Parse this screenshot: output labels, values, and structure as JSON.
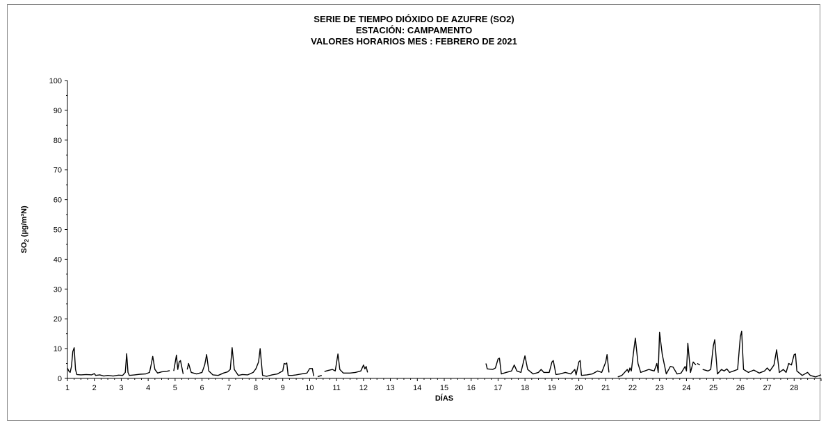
{
  "chart_data": {
    "type": "line",
    "title": "SERIE DE TIEMPO DIÓXIDO DE AZUFRE (SO2)",
    "subtitle": "ESTACIÓN: CAMPAMENTO",
    "subtitle2": "VALORES HORARIOS MES : FEBRERO DE 2021",
    "xlabel": "DÍAS",
    "ylabel_main": "SO",
    "ylabel_sub": "2",
    "ylabel_rest": " (µg/m³N)",
    "ylim": [
      0,
      100
    ],
    "xlim": [
      1,
      29
    ],
    "yticks": [
      0,
      10,
      20,
      30,
      40,
      50,
      60,
      70,
      80,
      90,
      100
    ],
    "xtick_labels": [
      "1",
      "2",
      "3",
      "4",
      "5",
      "6",
      "7",
      "8",
      "9",
      "10",
      "11",
      "12",
      "13",
      "14",
      "15",
      "16",
      "17",
      "18",
      "19",
      "20",
      "21",
      "22",
      "23",
      "24",
      "25",
      "26",
      "27",
      "28"
    ],
    "grid": false,
    "legend": "none",
    "line_color": "#000000",
    "series": [
      {
        "segments": [
          [
            [
              1.0,
              3.5
            ],
            [
              1.05,
              2.5
            ],
            [
              1.1,
              2.0
            ],
            [
              1.15,
              4.0
            ],
            [
              1.2,
              9.0
            ],
            [
              1.25,
              10.3
            ],
            [
              1.3,
              3.0
            ],
            [
              1.35,
              1.3
            ],
            [
              1.5,
              1.2
            ],
            [
              1.7,
              1.3
            ],
            [
              1.9,
              1.2
            ],
            [
              2.0,
              1.6
            ],
            [
              2.05,
              1.0
            ],
            [
              2.2,
              1.2
            ],
            [
              2.35,
              0.8
            ],
            [
              2.5,
              1.0
            ],
            [
              2.7,
              0.8
            ],
            [
              2.9,
              1.1
            ],
            [
              3.05,
              1.0
            ],
            [
              3.15,
              2.0
            ],
            [
              3.2,
              8.3
            ],
            [
              3.25,
              2.0
            ],
            [
              3.3,
              1.0
            ],
            [
              3.5,
              1.2
            ],
            [
              3.7,
              1.4
            ],
            [
              3.9,
              1.5
            ],
            [
              4.05,
              2.0
            ],
            [
              4.12,
              5.0
            ],
            [
              4.17,
              7.4
            ],
            [
              4.25,
              3.0
            ],
            [
              4.35,
              1.8
            ],
            [
              4.5,
              2.2
            ],
            [
              4.7,
              2.4
            ],
            [
              4.8,
              2.6
            ]
          ],
          [
            [
              4.95,
              2.5
            ],
            [
              5.05,
              7.8
            ],
            [
              5.1,
              3.0
            ],
            [
              5.15,
              5.5
            ],
            [
              5.2,
              6.0
            ],
            [
              5.3,
              1.5
            ]
          ],
          [
            [
              5.45,
              3.0
            ],
            [
              5.5,
              5.0
            ],
            [
              5.6,
              2.0
            ],
            [
              5.8,
              1.5
            ],
            [
              6.0,
              2.0
            ],
            [
              6.1,
              4.5
            ],
            [
              6.17,
              8.0
            ],
            [
              6.25,
              2.5
            ],
            [
              6.4,
              1.2
            ],
            [
              6.6,
              1.0
            ],
            [
              6.8,
              1.8
            ],
            [
              6.95,
              2.2
            ],
            [
              7.05,
              3.0
            ],
            [
              7.12,
              10.3
            ],
            [
              7.2,
              3.0
            ],
            [
              7.35,
              1.0
            ],
            [
              7.5,
              1.3
            ],
            [
              7.7,
              1.2
            ],
            [
              7.9,
              2.0
            ],
            [
              8.0,
              3.2
            ],
            [
              8.1,
              5.5
            ],
            [
              8.16,
              10.0
            ],
            [
              8.25,
              1.0
            ],
            [
              8.4,
              0.7
            ],
            [
              8.6,
              1.2
            ],
            [
              8.8,
              1.5
            ],
            [
              8.9,
              2.0
            ],
            [
              9.0,
              2.5
            ],
            [
              9.05,
              5.0
            ],
            [
              9.1,
              4.8
            ],
            [
              9.15,
              5.2
            ],
            [
              9.2,
              1.0
            ],
            [
              9.35,
              1.0
            ],
            [
              9.5,
              1.2
            ],
            [
              9.7,
              1.5
            ],
            [
              9.9,
              1.8
            ],
            [
              10.0,
              3.3
            ],
            [
              10.1,
              3.3
            ],
            [
              10.15,
              0.8
            ]
          ],
          [
            [
              10.3,
              0.6
            ],
            [
              10.45,
              1.0
            ]
          ],
          [
            [
              10.55,
              2.3
            ],
            [
              10.7,
              2.7
            ],
            [
              10.85,
              3.0
            ],
            [
              10.95,
              2.5
            ],
            [
              11.05,
              8.2
            ],
            [
              11.12,
              3.0
            ],
            [
              11.25,
              1.8
            ],
            [
              11.5,
              1.8
            ],
            [
              11.7,
              2.0
            ],
            [
              11.9,
              2.5
            ],
            [
              12.0,
              4.5
            ],
            [
              12.05,
              3.2
            ],
            [
              12.1,
              4.0
            ],
            [
              12.15,
              2.0
            ]
          ]
        ]
      },
      {
        "segments": [
          [
            [
              16.55,
              5.0
            ],
            [
              16.6,
              3.2
            ],
            [
              16.8,
              3.0
            ],
            [
              16.9,
              3.5
            ],
            [
              17.0,
              6.5
            ],
            [
              17.05,
              6.8
            ],
            [
              17.12,
              1.5
            ],
            [
              17.3,
              2.0
            ],
            [
              17.5,
              2.5
            ],
            [
              17.6,
              4.5
            ],
            [
              17.7,
              2.5
            ],
            [
              17.85,
              2.0
            ],
            [
              18.0,
              7.6
            ],
            [
              18.1,
              3.0
            ],
            [
              18.3,
              1.5
            ],
            [
              18.5,
              2.0
            ],
            [
              18.6,
              3.0
            ],
            [
              18.7,
              2.0
            ],
            [
              18.9,
              2.0
            ],
            [
              19.0,
              5.5
            ],
            [
              19.05,
              6.0
            ],
            [
              19.15,
              1.3
            ],
            [
              19.3,
              1.5
            ],
            [
              19.5,
              2.0
            ],
            [
              19.7,
              1.5
            ],
            [
              19.85,
              3.0
            ],
            [
              19.9,
              1.2
            ],
            [
              20.0,
              5.5
            ],
            [
              20.05,
              6.0
            ],
            [
              20.1,
              1.0
            ],
            [
              20.3,
              1.2
            ],
            [
              20.5,
              1.5
            ],
            [
              20.7,
              2.5
            ],
            [
              20.85,
              2.0
            ],
            [
              21.0,
              5.5
            ],
            [
              21.05,
              8.0
            ],
            [
              21.12,
              2.0
            ]
          ],
          [
            [
              21.45,
              0.5
            ],
            [
              21.6,
              1.0
            ],
            [
              21.8,
              3.0
            ],
            [
              21.85,
              2.0
            ],
            [
              21.9,
              3.5
            ],
            [
              21.95,
              2.5
            ],
            [
              22.05,
              10.0
            ],
            [
              22.1,
              13.5
            ],
            [
              22.2,
              5.0
            ],
            [
              22.3,
              2.0
            ],
            [
              22.45,
              2.5
            ],
            [
              22.6,
              3.0
            ],
            [
              22.8,
              2.5
            ],
            [
              22.9,
              5.0
            ],
            [
              22.95,
              2.0
            ],
            [
              23.0,
              15.5
            ],
            [
              23.1,
              8.0
            ],
            [
              23.25,
              1.5
            ],
            [
              23.4,
              4.0
            ],
            [
              23.5,
              3.8
            ],
            [
              23.65,
              1.5
            ],
            [
              23.8,
              1.8
            ],
            [
              23.95,
              4.0
            ],
            [
              24.0,
              2.5
            ],
            [
              24.05,
              11.8
            ],
            [
              24.15,
              2.0
            ],
            [
              24.25,
              5.5
            ],
            [
              24.35,
              4.5
            ]
          ],
          [
            [
              24.4,
              5.0
            ],
            [
              24.5,
              4.5
            ]
          ],
          [
            [
              24.6,
              3.0
            ],
            [
              24.8,
              2.5
            ],
            [
              24.9,
              3.0
            ],
            [
              25.0,
              11.0
            ],
            [
              25.05,
              13.0
            ],
            [
              25.15,
              1.5
            ],
            [
              25.3,
              3.0
            ],
            [
              25.4,
              2.5
            ],
            [
              25.5,
              3.2
            ],
            [
              25.6,
              2.0
            ],
            [
              25.75,
              2.5
            ],
            [
              25.9,
              3.0
            ],
            [
              26.0,
              14.0
            ],
            [
              26.05,
              15.8
            ],
            [
              26.12,
              3.0
            ],
            [
              26.3,
              2.0
            ],
            [
              26.5,
              2.8
            ],
            [
              26.7,
              1.8
            ],
            [
              26.9,
              2.5
            ],
            [
              27.0,
              3.5
            ],
            [
              27.1,
              2.5
            ],
            [
              27.25,
              4.5
            ],
            [
              27.35,
              9.6
            ],
            [
              27.45,
              2.0
            ],
            [
              27.6,
              3.0
            ],
            [
              27.7,
              2.0
            ],
            [
              27.8,
              5.0
            ],
            [
              27.9,
              4.5
            ],
            [
              28.0,
              8.0
            ],
            [
              28.05,
              8.2
            ],
            [
              28.1,
              2.5
            ],
            [
              28.3,
              1.0
            ],
            [
              28.5,
              2.0
            ],
            [
              28.6,
              1.0
            ],
            [
              28.8,
              0.5
            ],
            [
              29.0,
              1.2
            ]
          ]
        ]
      }
    ]
  }
}
